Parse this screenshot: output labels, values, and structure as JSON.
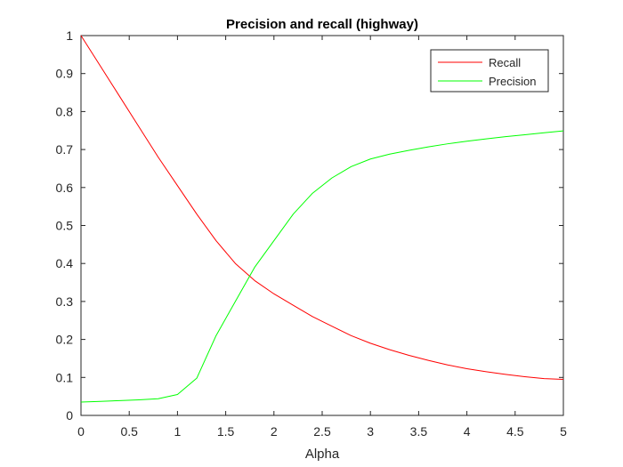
{
  "chart_data": {
    "type": "line",
    "title": "Precision and recall (highway)",
    "xlabel": "Alpha",
    "ylabel": "",
    "xlim": [
      0,
      5
    ],
    "ylim": [
      0,
      1
    ],
    "xticks": [
      0,
      0.5,
      1,
      1.5,
      2,
      2.5,
      3,
      3.5,
      4,
      4.5,
      5
    ],
    "xtick_labels": [
      "0",
      "0.5",
      "1",
      "1.5",
      "2",
      "2.5",
      "3",
      "3.5",
      "4",
      "4.5",
      "5"
    ],
    "yticks": [
      0,
      0.1,
      0.2,
      0.3,
      0.4,
      0.5,
      0.6,
      0.7,
      0.8,
      0.9,
      1
    ],
    "ytick_labels": [
      "0",
      "0.1",
      "0.2",
      "0.3",
      "0.4",
      "0.5",
      "0.6",
      "0.7",
      "0.8",
      "0.9",
      "1"
    ],
    "grid": false,
    "legend_position": "top-right",
    "series": [
      {
        "name": "Recall",
        "color": "#ff0000",
        "x": [
          0,
          0.2,
          0.4,
          0.6,
          0.8,
          1.0,
          1.2,
          1.4,
          1.6,
          1.8,
          2.0,
          2.2,
          2.4,
          2.6,
          2.8,
          3.0,
          3.2,
          3.4,
          3.6,
          3.8,
          4.0,
          4.2,
          4.4,
          4.6,
          4.8,
          5.0
        ],
        "y": [
          1.0,
          0.92,
          0.84,
          0.76,
          0.68,
          0.605,
          0.53,
          0.46,
          0.4,
          0.355,
          0.32,
          0.29,
          0.26,
          0.235,
          0.21,
          0.19,
          0.173,
          0.158,
          0.145,
          0.133,
          0.123,
          0.115,
          0.108,
          0.102,
          0.097,
          0.095
        ]
      },
      {
        "name": "Precision",
        "color": "#00ff00",
        "x": [
          0,
          0.2,
          0.4,
          0.6,
          0.8,
          1.0,
          1.2,
          1.4,
          1.6,
          1.8,
          2.0,
          2.2,
          2.4,
          2.6,
          2.8,
          3.0,
          3.2,
          3.4,
          3.6,
          3.8,
          4.0,
          4.2,
          4.4,
          4.6,
          4.8,
          5.0
        ],
        "y": [
          0.035,
          0.037,
          0.039,
          0.041,
          0.044,
          0.055,
          0.098,
          0.21,
          0.3,
          0.39,
          0.46,
          0.53,
          0.585,
          0.625,
          0.655,
          0.675,
          0.688,
          0.698,
          0.707,
          0.715,
          0.722,
          0.728,
          0.734,
          0.739,
          0.744,
          0.749
        ]
      }
    ]
  }
}
